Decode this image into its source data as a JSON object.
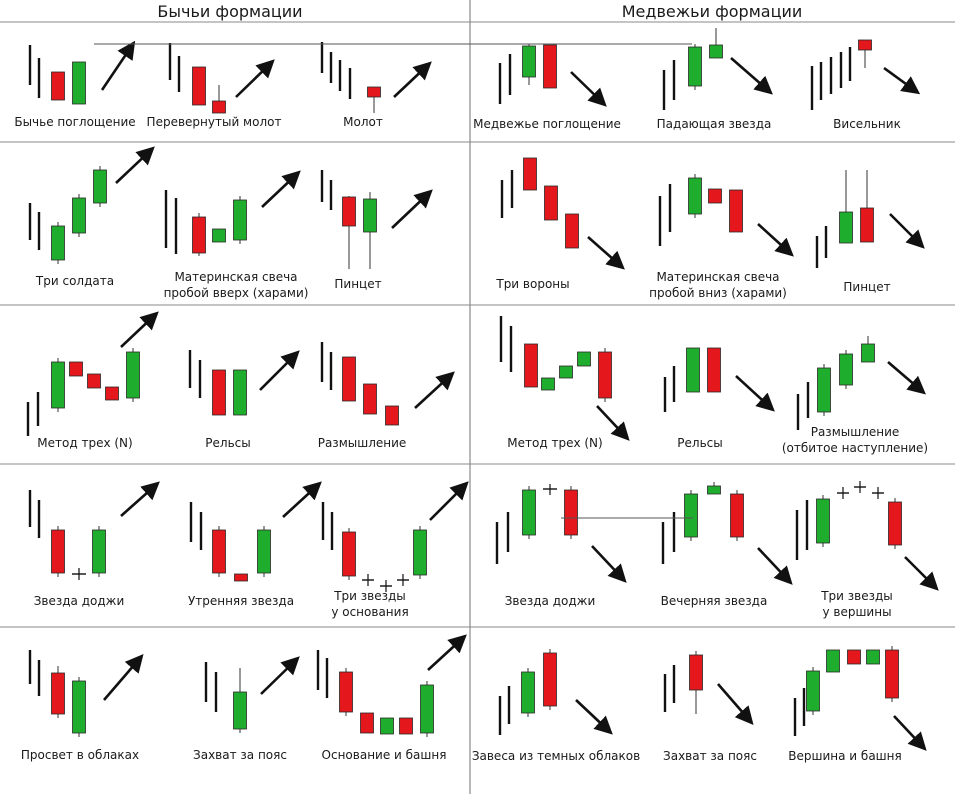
{
  "headers": {
    "bullish": "Бычьи формации",
    "bearish": "Медвежьи формации"
  },
  "colors": {
    "bull": "#1fad2d",
    "bear": "#e3171c",
    "ink": "#111111",
    "grid": "#8a8a8a"
  },
  "patterns": [
    {
      "key": "bullish-engulfing",
      "lines": [
        "Бычье поглощение"
      ]
    },
    {
      "key": "inverted-hammer",
      "lines": [
        "Перевернутый молот"
      ]
    },
    {
      "key": "hammer",
      "lines": [
        "Молот"
      ]
    },
    {
      "key": "bearish-engulfing",
      "lines": [
        "Медвежье поглощение"
      ]
    },
    {
      "key": "shooting-star",
      "lines": [
        "Падающая звезда"
      ]
    },
    {
      "key": "hanging-man",
      "lines": [
        "Висельник"
      ]
    },
    {
      "key": "three-soldiers",
      "lines": [
        "Три солдата"
      ]
    },
    {
      "key": "bull-harami",
      "lines": [
        "Материнская свеча",
        "пробой вверх (харами)"
      ]
    },
    {
      "key": "bull-tweezer",
      "lines": [
        "Пинцет"
      ]
    },
    {
      "key": "three-crows",
      "lines": [
        "Три вороны"
      ]
    },
    {
      "key": "bear-harami",
      "lines": [
        "Материнская свеча",
        "пробой вниз (харами)"
      ]
    },
    {
      "key": "bear-tweezer",
      "lines": [
        "Пинцет"
      ]
    },
    {
      "key": "bull-three-method",
      "lines": [
        "Метод трех (N)"
      ]
    },
    {
      "key": "bull-rails",
      "lines": [
        "Рельсы"
      ]
    },
    {
      "key": "bull-reflection",
      "lines": [
        "Размышление"
      ]
    },
    {
      "key": "bear-three-method",
      "lines": [
        "Метод трех (N)"
      ]
    },
    {
      "key": "bear-rails",
      "lines": [
        "Рельсы"
      ]
    },
    {
      "key": "bear-reflection",
      "lines": [
        "Размышление",
        "(отбитое наступление)"
      ]
    },
    {
      "key": "bull-doji-star",
      "lines": [
        "Звезда доджи"
      ]
    },
    {
      "key": "morning-star",
      "lines": [
        "Утренняя звезда"
      ]
    },
    {
      "key": "three-stars-bottom",
      "lines": [
        "Три звезды",
        "у основания"
      ]
    },
    {
      "key": "bear-doji-star",
      "lines": [
        "Звезда доджи"
      ]
    },
    {
      "key": "evening-star",
      "lines": [
        "Вечерняя звезда"
      ]
    },
    {
      "key": "three-stars-top",
      "lines": [
        "Три звезды",
        "у вершины"
      ]
    },
    {
      "key": "piercing",
      "lines": [
        "Просвет в облаках"
      ]
    },
    {
      "key": "bull-belt-hold",
      "lines": [
        "Захват за пояс"
      ]
    },
    {
      "key": "tower-bottom",
      "lines": [
        "Основание и башня"
      ]
    },
    {
      "key": "dark-cloud",
      "lines": [
        "Завеса из темных облаков"
      ]
    },
    {
      "key": "bear-belt-hold",
      "lines": [
        "Захват за пояс"
      ]
    },
    {
      "key": "tower-top",
      "lines": [
        "Вершина и башня"
      ]
    }
  ]
}
